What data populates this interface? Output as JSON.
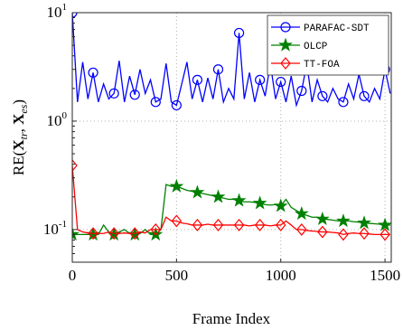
{
  "chart_data": {
    "type": "line",
    "log_y": true,
    "grid": true,
    "legend": "upper right",
    "marker_every": 4,
    "xlabel": "Frame Index",
    "ylabel": [
      "RE(",
      "X",
      "tr",
      ", ",
      "X",
      "es",
      ")"
    ],
    "xlim": [
      0,
      1530
    ],
    "ylim": [
      0.05,
      10
    ],
    "xticks": [
      0,
      500,
      1000,
      1500
    ],
    "yticks": [
      {
        "value": 0.1,
        "label": "10",
        "exponent": "-1"
      },
      {
        "value": 1,
        "label": "10",
        "exponent": "0"
      },
      {
        "value": 10,
        "label": "10",
        "exponent": "1"
      }
    ],
    "x": [
      0,
      25,
      50,
      75,
      100,
      125,
      150,
      175,
      200,
      225,
      250,
      275,
      300,
      325,
      350,
      375,
      400,
      425,
      450,
      475,
      500,
      525,
      550,
      575,
      600,
      625,
      650,
      675,
      700,
      725,
      750,
      775,
      800,
      825,
      850,
      875,
      900,
      925,
      950,
      975,
      1000,
      1025,
      1050,
      1075,
      1100,
      1125,
      1150,
      1175,
      1200,
      1225,
      1250,
      1275,
      1300,
      1325,
      1350,
      1375,
      1400,
      1425,
      1450,
      1475,
      1500,
      1525
    ],
    "series": [
      {
        "name": "PARAFAC-SDT",
        "color": "#0000ff",
        "marker": "circle",
        "values": [
          10,
          1.5,
          3.5,
          1.6,
          2.8,
          1.5,
          2.2,
          1.6,
          1.8,
          3.6,
          1.5,
          2.6,
          1.75,
          3.0,
          1.8,
          2.4,
          1.5,
          1.6,
          3.4,
          1.5,
          1.4,
          2.2,
          3.5,
          1.6,
          2.4,
          1.5,
          2.5,
          1.6,
          3.0,
          1.5,
          2.0,
          1.6,
          6.5,
          1.6,
          2.8,
          1.5,
          2.4,
          1.7,
          3.4,
          1.6,
          2.3,
          1.5,
          2.6,
          1.4,
          1.9,
          3.4,
          1.5,
          2.4,
          1.7,
          1.5,
          2.0,
          1.6,
          1.5,
          2.2,
          1.6,
          2.7,
          1.7,
          1.5,
          2.0,
          1.6,
          3.0,
          1.8
        ]
      },
      {
        "name": "OLCP",
        "color": "#008000",
        "marker": "star",
        "values": [
          0.09,
          0.09,
          0.09,
          0.09,
          0.09,
          0.09,
          0.11,
          0.095,
          0.09,
          0.095,
          0.1,
          0.092,
          0.09,
          0.092,
          0.1,
          0.09,
          0.09,
          0.1,
          0.26,
          0.25,
          0.25,
          0.24,
          0.23,
          0.225,
          0.22,
          0.215,
          0.21,
          0.205,
          0.2,
          0.195,
          0.19,
          0.19,
          0.185,
          0.18,
          0.18,
          0.178,
          0.175,
          0.17,
          0.168,
          0.17,
          0.165,
          0.19,
          0.16,
          0.15,
          0.14,
          0.135,
          0.13,
          0.13,
          0.125,
          0.124,
          0.122,
          0.12,
          0.12,
          0.12,
          0.118,
          0.117,
          0.115,
          0.114,
          0.113,
          0.112,
          0.11,
          0.11
        ]
      },
      {
        "name": "TT-FOA",
        "color": "#ff0000",
        "marker": "diamond",
        "values": [
          0.39,
          0.1,
          0.095,
          0.093,
          0.092,
          0.092,
          0.092,
          0.095,
          0.092,
          0.092,
          0.093,
          0.092,
          0.092,
          0.095,
          0.093,
          0.1,
          0.1,
          0.1,
          0.13,
          0.12,
          0.12,
          0.115,
          0.113,
          0.11,
          0.11,
          0.11,
          0.112,
          0.11,
          0.11,
          0.11,
          0.11,
          0.11,
          0.11,
          0.11,
          0.108,
          0.11,
          0.11,
          0.11,
          0.108,
          0.11,
          0.11,
          0.12,
          0.11,
          0.1,
          0.1,
          0.098,
          0.097,
          0.096,
          0.095,
          0.095,
          0.094,
          0.093,
          0.09,
          0.092,
          0.093,
          0.092,
          0.092,
          0.091,
          0.09,
          0.09,
          0.09,
          0.09
        ]
      }
    ]
  }
}
